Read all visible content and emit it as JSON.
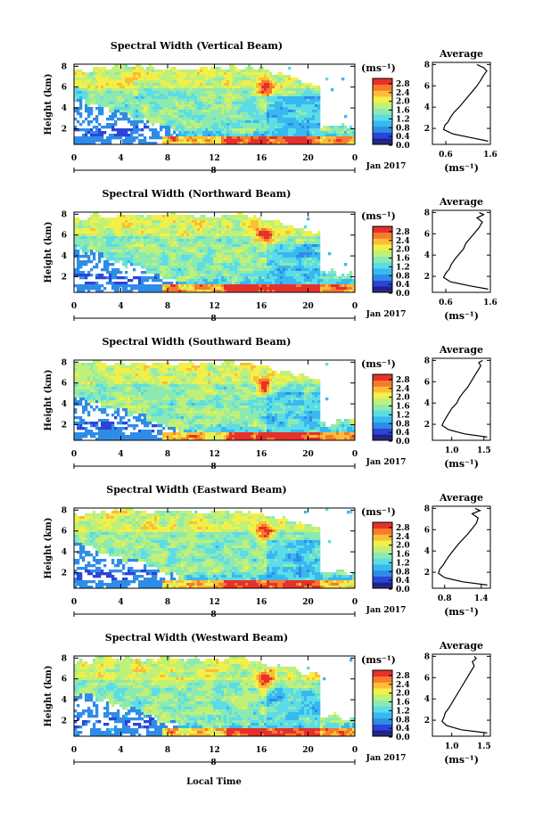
{
  "figure": {
    "xlabel": "Local Time",
    "date_label": "Jan 2017",
    "date_tick": "8",
    "ylabel": "Height (km)",
    "unit_label": "(ms⁻¹)",
    "avg_title": "Average",
    "avg_xlabel": "(ms⁻¹)",
    "colormap": [
      "#1d1f95",
      "#2a45d8",
      "#2f8ce6",
      "#38b8f0",
      "#5cdce6",
      "#8ceab0",
      "#bff07a",
      "#f2f048",
      "#fbbe36",
      "#f87a2a",
      "#e8302a"
    ],
    "colorbar_low_color": "#2a2a70"
  },
  "chart_data": [
    {
      "type": "heatmap",
      "title": "Spectral Width (Vertical Beam)",
      "x_ticks": [
        "0",
        "4",
        "8",
        "12",
        "16",
        "20",
        "0"
      ],
      "y_ticks": [
        "8",
        "6",
        "4",
        "2"
      ],
      "xlim": [
        0,
        24
      ],
      "ylim": [
        0.5,
        8.2
      ],
      "colorbar_ticks": [
        "2.8",
        "2.4",
        "2.0",
        "1.6",
        "1.2",
        "0.8",
        "0.4",
        "0.0"
      ],
      "colorbar_range": [
        0.0,
        3.0
      ],
      "avg_profile": {
        "x_ticks": [
          "0.6",
          "1.6"
        ],
        "xlim": [
          0.3,
          1.6
        ],
        "ylim": [
          0.5,
          8.2
        ],
        "points": [
          [
            1.55,
            0.8
          ],
          [
            1.2,
            1.1
          ],
          [
            0.75,
            1.5
          ],
          [
            0.55,
            1.9
          ],
          [
            0.58,
            2.3
          ],
          [
            0.65,
            2.6
          ],
          [
            0.7,
            3.0
          ],
          [
            0.78,
            3.5
          ],
          [
            0.9,
            4.0
          ],
          [
            1.0,
            4.5
          ],
          [
            1.1,
            5.0
          ],
          [
            1.2,
            5.5
          ],
          [
            1.3,
            6.0
          ],
          [
            1.38,
            6.5
          ],
          [
            1.45,
            7.0
          ],
          [
            1.52,
            7.4
          ],
          [
            1.45,
            7.7
          ],
          [
            1.3,
            8.0
          ]
        ]
      }
    },
    {
      "type": "heatmap",
      "title": "Spectral Width (Northward Beam)",
      "x_ticks": [
        "0",
        "4",
        "8",
        "12",
        "16",
        "20",
        "0"
      ],
      "y_ticks": [
        "8",
        "6",
        "4",
        "2"
      ],
      "xlim": [
        0,
        24
      ],
      "ylim": [
        0.5,
        8.2
      ],
      "colorbar_ticks": [
        "2.8",
        "2.4",
        "2.0",
        "1.6",
        "1.2",
        "0.8",
        "0.4",
        "0.0"
      ],
      "colorbar_range": [
        0.0,
        3.0
      ],
      "avg_profile": {
        "x_ticks": [
          "0.6",
          "1.6"
        ],
        "xlim": [
          0.3,
          1.6
        ],
        "ylim": [
          0.5,
          8.2
        ],
        "points": [
          [
            1.55,
            0.8
          ],
          [
            1.15,
            1.1
          ],
          [
            0.7,
            1.5
          ],
          [
            0.55,
            1.9
          ],
          [
            0.6,
            2.3
          ],
          [
            0.68,
            2.7
          ],
          [
            0.72,
            3.1
          ],
          [
            0.8,
            3.6
          ],
          [
            0.9,
            4.1
          ],
          [
            1.0,
            4.6
          ],
          [
            1.05,
            5.1
          ],
          [
            1.15,
            5.6
          ],
          [
            1.25,
            6.1
          ],
          [
            1.35,
            6.6
          ],
          [
            1.42,
            7.1
          ],
          [
            1.3,
            7.5
          ],
          [
            1.45,
            7.8
          ],
          [
            1.35,
            8.0
          ]
        ]
      }
    },
    {
      "type": "heatmap",
      "title": "Spectral Width (Southward Beam)",
      "x_ticks": [
        "0",
        "4",
        "8",
        "12",
        "16",
        "20",
        "0"
      ],
      "y_ticks": [
        "8",
        "6",
        "4",
        "2"
      ],
      "xlim": [
        0,
        24
      ],
      "ylim": [
        0.5,
        8.2
      ],
      "colorbar_ticks": [
        "2.8",
        "2.4",
        "2.0",
        "1.6",
        "1.2",
        "0.8",
        "0.4",
        "0.0"
      ],
      "colorbar_range": [
        0.0,
        3.0
      ],
      "avg_profile": {
        "x_ticks": [
          "1.0",
          "1.5"
        ],
        "xlim": [
          0.7,
          1.6
        ],
        "ylim": [
          0.5,
          8.2
        ],
        "points": [
          [
            1.55,
            0.8
          ],
          [
            1.2,
            1.1
          ],
          [
            0.95,
            1.5
          ],
          [
            0.85,
            1.9
          ],
          [
            0.88,
            2.3
          ],
          [
            0.92,
            2.7
          ],
          [
            0.95,
            3.0
          ],
          [
            1.0,
            3.5
          ],
          [
            1.08,
            4.0
          ],
          [
            1.12,
            4.5
          ],
          [
            1.18,
            5.0
          ],
          [
            1.25,
            5.5
          ],
          [
            1.3,
            6.0
          ],
          [
            1.35,
            6.5
          ],
          [
            1.4,
            7.0
          ],
          [
            1.45,
            7.5
          ],
          [
            1.42,
            7.8
          ],
          [
            1.48,
            8.0
          ]
        ]
      }
    },
    {
      "type": "heatmap",
      "title": "Spectral Width (Eastward Beam)",
      "x_ticks": [
        "0",
        "4",
        "8",
        "12",
        "16",
        "20",
        "0"
      ],
      "y_ticks": [
        "8",
        "6",
        "4",
        "2"
      ],
      "xlim": [
        0,
        24
      ],
      "ylim": [
        0.5,
        8.2
      ],
      "colorbar_ticks": [
        "2.8",
        "2.4",
        "2.0",
        "1.6",
        "1.2",
        "0.8",
        "0.4",
        "0.0"
      ],
      "colorbar_range": [
        0.0,
        3.0
      ],
      "avg_profile": {
        "x_ticks": [
          "0.8",
          "1.4"
        ],
        "xlim": [
          0.6,
          1.55
        ],
        "ylim": [
          0.5,
          8.2
        ],
        "points": [
          [
            1.5,
            0.8
          ],
          [
            1.1,
            1.1
          ],
          [
            0.8,
            1.5
          ],
          [
            0.7,
            1.9
          ],
          [
            0.72,
            2.3
          ],
          [
            0.78,
            2.7
          ],
          [
            0.82,
            3.1
          ],
          [
            0.88,
            3.6
          ],
          [
            0.95,
            4.1
          ],
          [
            1.02,
            4.6
          ],
          [
            1.1,
            5.1
          ],
          [
            1.18,
            5.6
          ],
          [
            1.25,
            6.1
          ],
          [
            1.32,
            6.6
          ],
          [
            1.35,
            7.1
          ],
          [
            1.25,
            7.5
          ],
          [
            1.38,
            7.8
          ],
          [
            1.3,
            8.0
          ]
        ]
      }
    },
    {
      "type": "heatmap",
      "title": "Spectral Width (Westward Beam)",
      "x_ticks": [
        "0",
        "4",
        "8",
        "12",
        "16",
        "20",
        "0"
      ],
      "y_ticks": [
        "8",
        "6",
        "4",
        "2"
      ],
      "xlim": [
        0,
        24
      ],
      "ylim": [
        0.5,
        8.2
      ],
      "colorbar_ticks": [
        "2.8",
        "2.4",
        "2.0",
        "1.6",
        "1.2",
        "0.8",
        "0.4",
        "0.0"
      ],
      "colorbar_range": [
        0.0,
        3.0
      ],
      "avg_profile": {
        "x_ticks": [
          "1.0",
          "1.5"
        ],
        "xlim": [
          0.7,
          1.6
        ],
        "ylim": [
          0.5,
          8.2
        ],
        "points": [
          [
            1.55,
            0.8
          ],
          [
            1.15,
            1.1
          ],
          [
            0.92,
            1.5
          ],
          [
            0.85,
            1.9
          ],
          [
            0.88,
            2.3
          ],
          [
            0.9,
            2.7
          ],
          [
            0.95,
            3.1
          ],
          [
            1.0,
            3.6
          ],
          [
            1.05,
            4.1
          ],
          [
            1.1,
            4.6
          ],
          [
            1.15,
            5.1
          ],
          [
            1.2,
            5.6
          ],
          [
            1.25,
            6.1
          ],
          [
            1.3,
            6.6
          ],
          [
            1.35,
            7.1
          ],
          [
            1.32,
            7.5
          ],
          [
            1.38,
            7.8
          ],
          [
            1.35,
            8.0
          ]
        ]
      }
    }
  ]
}
